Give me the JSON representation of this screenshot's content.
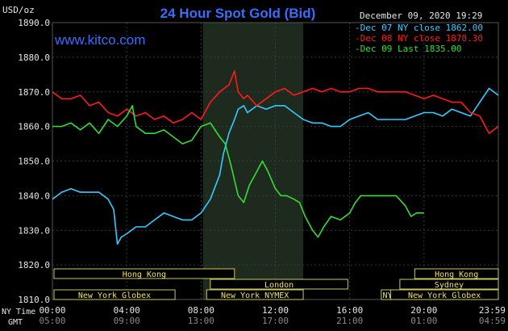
{
  "chart_data": {
    "type": "line",
    "title": "24 Hour Spot Gold (Bid)",
    "ylabel": "USD/oz",
    "site": "www.kitco.com",
    "date_stamp": "December 09, 2020 19:29",
    "ylim": [
      1810,
      1890
    ],
    "y_ticks": [
      "1890.0",
      "1880.0",
      "1870.0",
      "1860.0",
      "1850.0",
      "1840.0",
      "1830.0",
      "1820.0",
      "1810.0"
    ],
    "xlim": [
      0,
      24
    ],
    "x_ticks": [
      {
        "x": 0,
        "ny": "00:00",
        "gmt": "05:00"
      },
      {
        "x": 4,
        "ny": "04:00",
        "gmt": "09:00"
      },
      {
        "x": 8,
        "ny": "08:00",
        "gmt": "13:00"
      },
      {
        "x": 12,
        "ny": "12:00",
        "gmt": "17:00"
      },
      {
        "x": 16,
        "ny": "16:00",
        "gmt": "21:00"
      },
      {
        "x": 20,
        "ny": "20:00",
        "gmt": "01:00"
      },
      {
        "x": 24,
        "ny": "23:59",
        "gmt": "04:59"
      }
    ],
    "x_label_ny": "NY Time",
    "x_label_gmt": "GMT",
    "highlight_range": [
      8.1,
      13.5
    ],
    "grid": true,
    "legend_position": "top-right",
    "series": [
      {
        "name": "Dec 07 NY close 1862.00",
        "color": "#33ccff",
        "x": [
          0,
          0.5,
          1,
          1.5,
          2,
          2.5,
          3,
          3.3,
          3.5,
          3.7,
          4,
          4.5,
          5,
          5.5,
          6,
          6.5,
          7,
          7.5,
          8,
          8.5,
          9,
          9.2,
          9.5,
          9.8,
          10,
          10.3,
          10.5,
          11,
          11.5,
          12,
          12.5,
          13,
          13.5,
          14,
          14.5,
          15,
          15.5,
          16,
          16.5,
          17,
          17.5,
          18,
          18.5,
          19,
          19.5,
          20,
          20.5,
          21,
          21.5,
          22,
          22.5,
          23,
          23.5,
          24
        ],
        "y": [
          1839,
          1841,
          1842,
          1841,
          1841,
          1841,
          1839,
          1836,
          1826,
          1828,
          1829,
          1831,
          1831,
          1833,
          1835,
          1834,
          1833,
          1833,
          1835,
          1839,
          1846,
          1852,
          1858,
          1862,
          1865,
          1866,
          1864,
          1866,
          1865,
          1866,
          1866,
          1864,
          1862,
          1861,
          1861,
          1860,
          1860,
          1862,
          1863,
          1864,
          1862,
          1862,
          1862,
          1862,
          1863,
          1864,
          1864,
          1863,
          1865,
          1864,
          1863,
          1867,
          1871,
          1869
        ]
      },
      {
        "name": "Dec 08 NY close 1870.30",
        "color": "#ff1a1a",
        "x": [
          0,
          0.5,
          1,
          1.5,
          2,
          2.5,
          3,
          3.5,
          4,
          4.5,
          5,
          5.5,
          6,
          6.5,
          7,
          7.5,
          8,
          8.5,
          9,
          9.5,
          9.8,
          10,
          10.3,
          10.5,
          11,
          11.5,
          12,
          12.5,
          13,
          13.5,
          14,
          14.5,
          15,
          15.5,
          16,
          16.5,
          17,
          17.5,
          18,
          18.5,
          19,
          19.5,
          20,
          20.5,
          21,
          21.5,
          22,
          22.5,
          23,
          23.5,
          24
        ],
        "y": [
          1870,
          1868,
          1868,
          1869,
          1866,
          1867,
          1864,
          1863,
          1865,
          1863,
          1864,
          1862,
          1863,
          1861,
          1862,
          1864,
          1862,
          1867,
          1870,
          1872,
          1876,
          1870,
          1868,
          1869,
          1866,
          1868,
          1870,
          1871,
          1869,
          1870,
          1871,
          1870,
          1871,
          1870,
          1870,
          1871,
          1871,
          1870,
          1870,
          1870,
          1870,
          1869,
          1868,
          1869,
          1868,
          1867,
          1867,
          1864,
          1863,
          1858,
          1860
        ]
      },
      {
        "name": "Dec 09 Last 1835.00",
        "color": "#33dd33",
        "x": [
          0,
          0.5,
          1,
          1.5,
          2,
          2.5,
          3,
          3.5,
          4,
          4.3,
          4.5,
          5,
          5.5,
          6,
          6.5,
          7,
          7.5,
          8,
          8.5,
          9,
          9.3,
          9.6,
          10,
          10.3,
          10.6,
          11,
          11.3,
          11.6,
          12,
          12.3,
          12.6,
          13,
          13.3,
          13.6,
          14,
          14.3,
          14.6,
          15,
          15.5,
          16,
          16.3,
          16.6,
          17,
          17.5,
          18,
          18.5,
          19,
          19.3,
          19.6,
          20
        ],
        "y": [
          1860,
          1860,
          1861,
          1859,
          1861,
          1858,
          1862,
          1860,
          1863,
          1866,
          1860,
          1858,
          1858,
          1859,
          1857,
          1855,
          1856,
          1860,
          1861,
          1857,
          1855,
          1849,
          1840,
          1838,
          1843,
          1847,
          1850,
          1847,
          1842,
          1840,
          1840,
          1839,
          1838,
          1834,
          1830,
          1828,
          1831,
          1834,
          1833,
          1835,
          1838,
          1840,
          1840,
          1840,
          1840,
          1840,
          1837,
          1834,
          1835,
          1835
        ]
      }
    ],
    "sessions": [
      {
        "label": "Hong Kong",
        "start": -0.5,
        "end": 9.8
      },
      {
        "label": "London",
        "start": 8.5,
        "end": 15.9
      },
      {
        "label": "New York Globex",
        "start": -0.5,
        "end": 6.6
      },
      {
        "label": "New York NYMEX",
        "start": 8.3,
        "end": 13.5
      },
      {
        "label": "NY Globex",
        "start": 17.7,
        "end": 20.2
      },
      {
        "label": "Hong Kong",
        "start": 19.5,
        "end": 24.5
      },
      {
        "label": "Sydney",
        "start": 18.7,
        "end": 24.5
      },
      {
        "label": "New York Globex",
        "start": 18.2,
        "end": 24.5
      }
    ]
  }
}
